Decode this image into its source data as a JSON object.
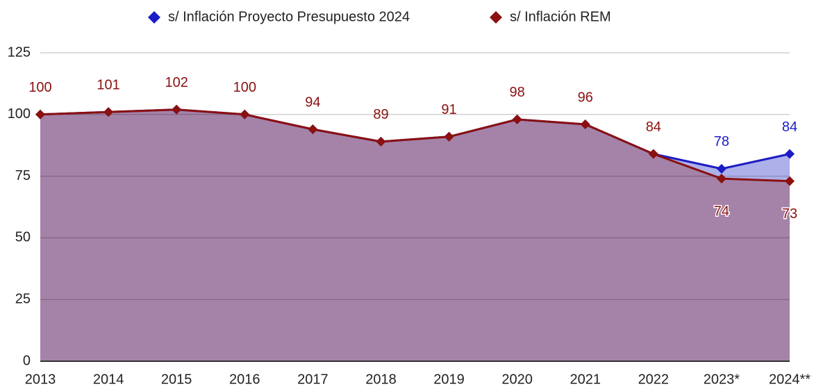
{
  "chart_data": {
    "type": "area",
    "categories": [
      "2013",
      "2014",
      "2015",
      "2016",
      "2017",
      "2018",
      "2019",
      "2020",
      "2021",
      "2022",
      "2023*",
      "2024**"
    ],
    "series": [
      {
        "name": "s/ Inflación Proyecto Presupuesto 2024",
        "color": "#1c1cc4",
        "fill": "#aeb0ea",
        "values": [
          100,
          101,
          102,
          100,
          94,
          89,
          91,
          98,
          96,
          84,
          78,
          84
        ]
      },
      {
        "name": "s/ Inflación REM",
        "color": "#8b1010",
        "fill": "#a583a8",
        "values": [
          100,
          101,
          102,
          100,
          94,
          89,
          91,
          98,
          96,
          84,
          74,
          73
        ]
      }
    ],
    "ylim": [
      0,
      125
    ],
    "yticks": [
      0,
      25,
      50,
      75,
      100,
      125
    ],
    "grid": true,
    "legend": "top"
  }
}
